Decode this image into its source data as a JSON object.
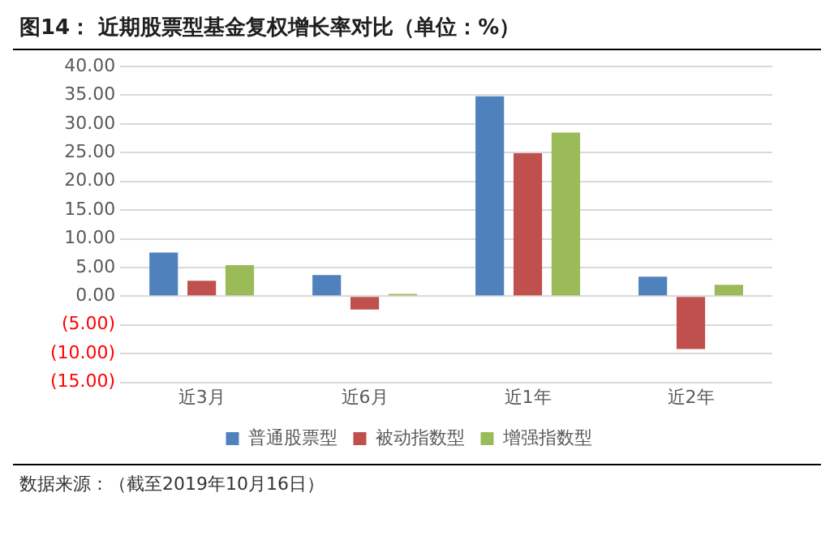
{
  "chart_data": {
    "type": "bar",
    "title": "图14：  近期股票型基金复权增长率对比（单位：%）",
    "categories": [
      "近3月",
      "近6月",
      "近1年",
      "近2年"
    ],
    "series": [
      {
        "name": "普通股票型",
        "color": "#4f81bd",
        "values": [
          7.6,
          3.7,
          34.8,
          3.4
        ]
      },
      {
        "name": "被动指数型",
        "color": "#c0504d",
        "values": [
          2.7,
          -2.3,
          24.9,
          -9.2
        ]
      },
      {
        "name": "增强指数型",
        "color": "#9bbb59",
        "values": [
          5.4,
          0.4,
          28.5,
          2.0
        ]
      }
    ],
    "ylim": [
      -15,
      40
    ],
    "yticks": [
      {
        "value": -15,
        "label": "(15.00)"
      },
      {
        "value": -10,
        "label": "(10.00)"
      },
      {
        "value": -5,
        "label": "(5.00)"
      },
      {
        "value": 0,
        "label": "0.00"
      },
      {
        "value": 5,
        "label": "5.00"
      },
      {
        "value": 10,
        "label": "10.00"
      },
      {
        "value": 15,
        "label": "15.00"
      },
      {
        "value": 20,
        "label": "20.00"
      },
      {
        "value": 25,
        "label": "25.00"
      },
      {
        "value": 30,
        "label": "30.00"
      },
      {
        "value": 35,
        "label": "35.00"
      },
      {
        "value": 40,
        "label": "40.00"
      }
    ],
    "grid": "y",
    "legend": "bottom",
    "annotations": [
      "数据来源：（截至2019年10月16日）"
    ]
  }
}
